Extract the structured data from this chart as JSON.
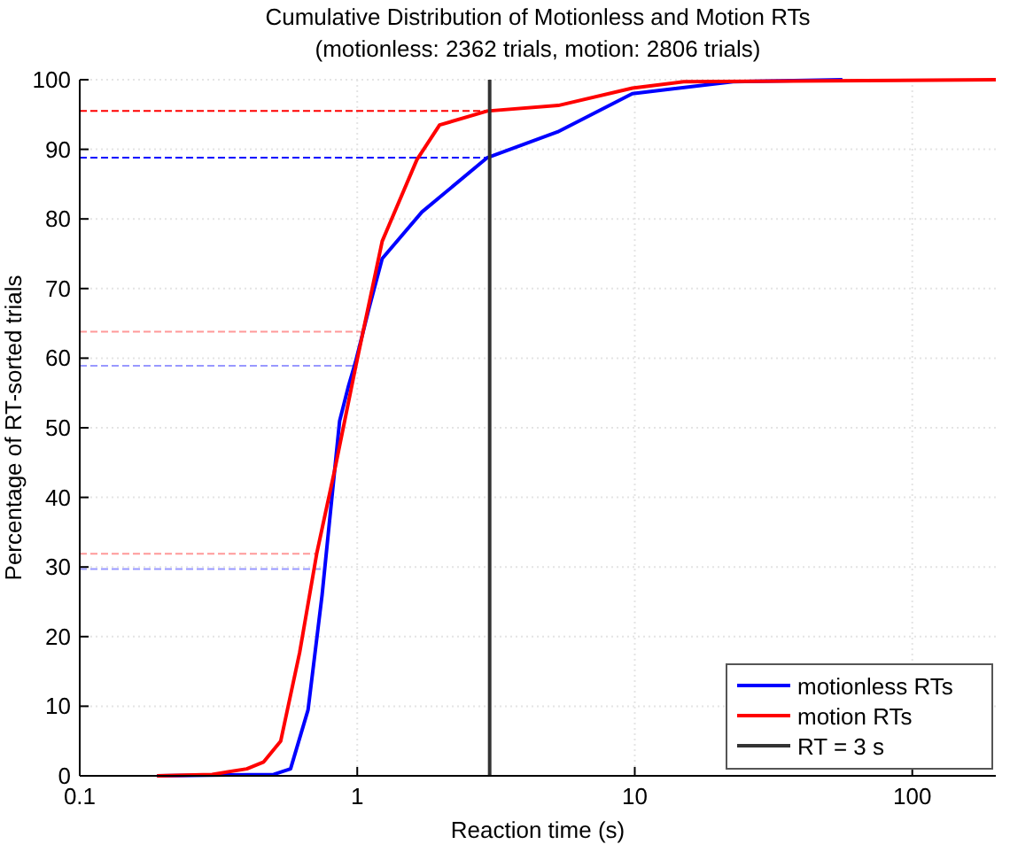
{
  "chart_data": {
    "type": "line",
    "title": "Cumulative Distribution of Motionless and Motion RTs",
    "subtitle": "(motionless: 2362 trials, motion: 2806 trials)",
    "xlabel": "Reaction time (s)",
    "ylabel": "Percentage of RT-sorted trials",
    "log": "x",
    "grid": true,
    "legend": "bottom right",
    "xlim": [
      0.1,
      200
    ],
    "xticks": [
      0.1,
      1,
      10,
      100
    ],
    "ylim": [
      0,
      100
    ],
    "yticks": [
      0,
      10,
      20,
      30,
      40,
      50,
      60,
      70,
      80,
      90,
      100
    ],
    "series": [
      {
        "name": "motionless RTs",
        "color": "#0000ff",
        "x": [
          0.19,
          0.5,
          0.575,
          0.665,
          0.747,
          0.864,
          0.93,
          0.985,
          1.1,
          1.23,
          1.71,
          2.94,
          5.27,
          9.8,
          22.6,
          56
        ],
        "values": [
          0,
          0.2,
          1,
          9.5,
          26,
          51,
          56,
          59.4,
          67,
          74.3,
          81,
          88.8,
          92.5,
          98,
          99.7,
          100
        ]
      },
      {
        "name": "motion RTs",
        "color": "#ff0000",
        "x": [
          0.19,
          0.3,
          0.4,
          0.46,
          0.53,
          0.62,
          0.715,
          0.83,
          0.985,
          1.23,
          1.64,
          1.98,
          2.94,
          5.3,
          9.8,
          15,
          200
        ],
        "values": [
          0,
          0.2,
          1,
          2,
          5,
          17.7,
          32,
          44,
          58.6,
          76.8,
          88.5,
          93.5,
          95.5,
          96.3,
          98.8,
          99.7,
          100
        ]
      },
      {
        "name": "RT = 3 s",
        "color": "#333333",
        "x": [
          3,
          3
        ],
        "values": [
          0,
          100
        ]
      }
    ],
    "ref_lines": [
      {
        "axis": "y",
        "value": 95.5,
        "color": "#ff0000",
        "line_style": "dashed"
      },
      {
        "axis": "y",
        "value": 88.8,
        "color": "#0000ff",
        "line_style": "dashed"
      },
      {
        "axis": "y",
        "value": 63.8,
        "color": "#ff9999",
        "line_style": "dashed"
      },
      {
        "axis": "y",
        "value": 58.9,
        "color": "#9999ff",
        "line_style": "dashed"
      },
      {
        "axis": "y",
        "value": 31.9,
        "color": "#ff9999",
        "line_style": "dashed"
      },
      {
        "axis": "y",
        "value": 29.7,
        "color": "#9999ff",
        "line_style": "dashed"
      }
    ]
  }
}
